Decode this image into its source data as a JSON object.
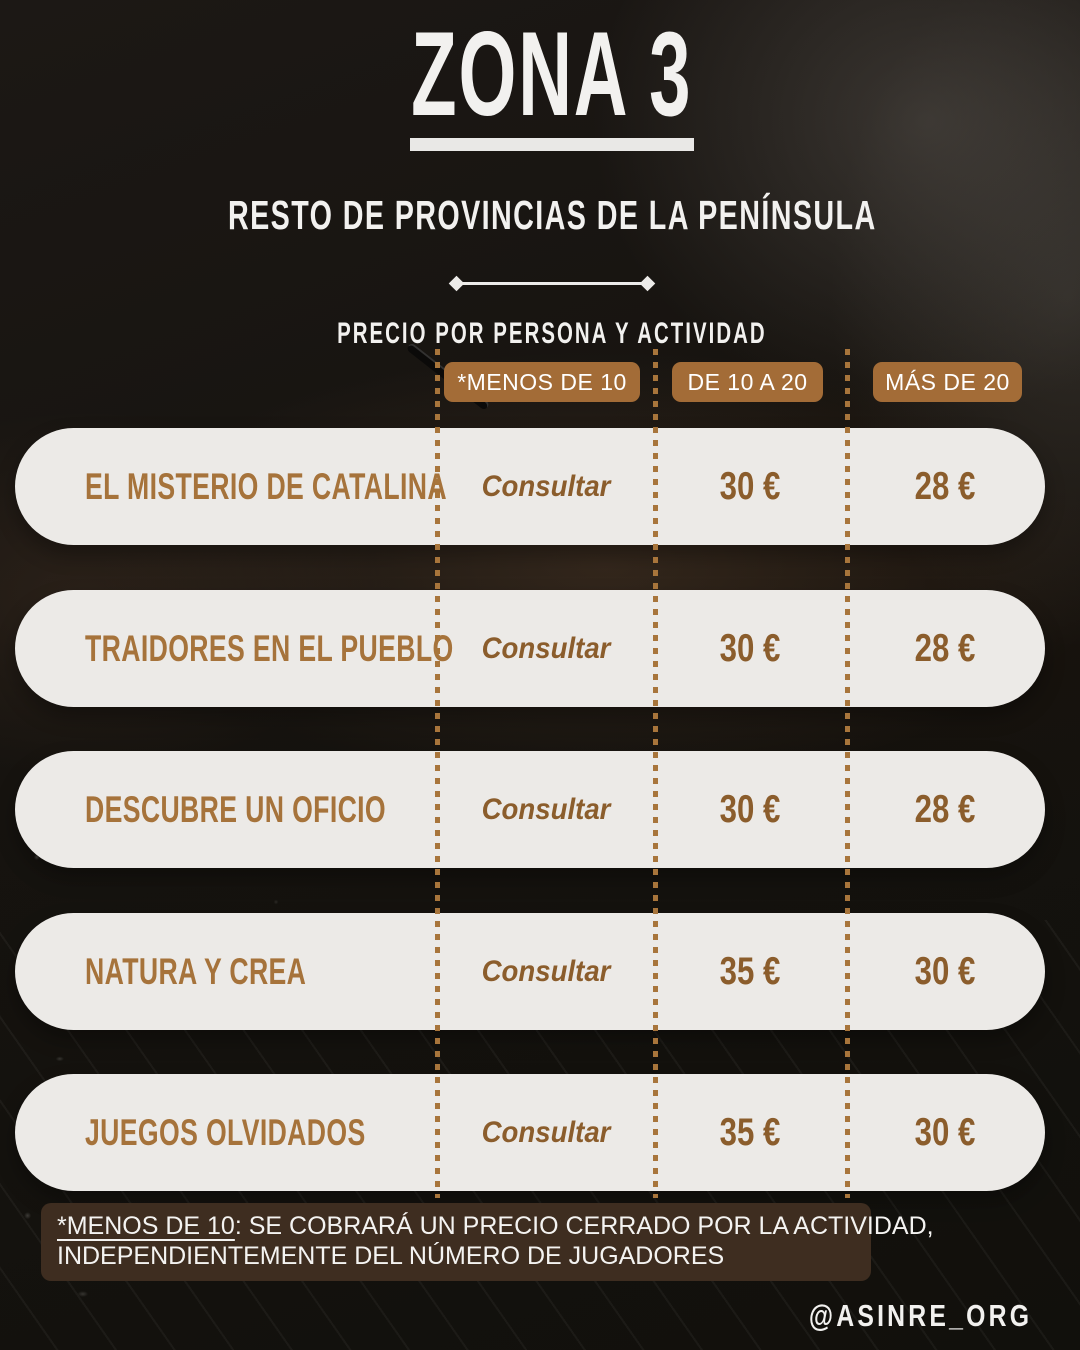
{
  "header": {
    "title": "ZONA 3",
    "subtitle": "RESTO DE PROVINCIAS DE LA PENÍNSULA",
    "tagline": "PRECIO POR PERSONA Y ACTIVIDAD"
  },
  "table": {
    "columns": [
      "*MENOS DE 10",
      "DE 10 A 20",
      "MÁS DE 20"
    ],
    "rows": [
      {
        "name": "EL MISTERIO DE CATALINA",
        "under_10": "Consultar",
        "from_10_to_20": "30 €",
        "over_20": "28 €"
      },
      {
        "name": "TRAIDORES EN EL PUEBLO",
        "under_10": "Consultar",
        "from_10_to_20": "30 €",
        "over_20": "28 €"
      },
      {
        "name": "DESCUBRE UN OFICIO",
        "under_10": "Consultar",
        "from_10_to_20": "30 €",
        "over_20": "28 €"
      },
      {
        "name": "NATURA Y CREA",
        "under_10": "Consultar",
        "from_10_to_20": "35 €",
        "over_20": "30 €"
      },
      {
        "name": "JUEGOS OLVIDADOS",
        "under_10": "Consultar",
        "from_10_to_20": "35 €",
        "over_20": "30 €"
      }
    ]
  },
  "footer": {
    "note_label": "*MENOS DE 10",
    "note_line1": ": SE COBRARÁ UN PRECIO CERRADO POR LA ACTIVIDAD,",
    "note_line2": "INDEPENDIENTEMENTE DEL NÚMERO DE JUGADORES",
    "handle": "@ASINRE_ORG"
  },
  "colors": {
    "badge_brown": "#A36C37",
    "dotted_line_brown": "#A8753B",
    "activity_name_brown": "#A6733B",
    "price_brown": "#8B5D2C",
    "card_background": "#ECEAE7",
    "note_background": "#3E2D20",
    "text_white": "#F2F1EF",
    "poster_background": "#14110F"
  }
}
